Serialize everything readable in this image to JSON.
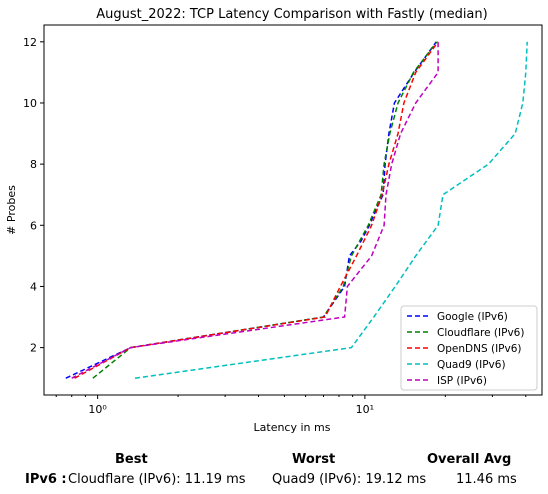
{
  "chart_data": {
    "type": "line",
    "title": "August_2022: TCP Latency Comparison with Fastly (median)",
    "xlabel": "Latency in ms",
    "ylabel": "# Probes",
    "x_scale": "log",
    "xlim": [
      0.63,
      46
    ],
    "ylim": [
      0.45,
      12.55
    ],
    "x_ticks": [
      1,
      10
    ],
    "x_tick_labels": [
      "10⁰",
      "10¹"
    ],
    "y_ticks": [
      2,
      4,
      6,
      8,
      10,
      12
    ],
    "legend_position": "lower-right",
    "grid": false,
    "series": [
      {
        "name": "Google (IPv6)",
        "color": "#0000ff",
        "points": [
          [
            0.76,
            1
          ],
          [
            1.33,
            2
          ],
          [
            7.0,
            3
          ],
          [
            8.4,
            4
          ],
          [
            8.75,
            5
          ],
          [
            9.7,
            5.5
          ],
          [
            10.4,
            6
          ],
          [
            11.0,
            6.5
          ],
          [
            11.7,
            7
          ],
          [
            11.9,
            8
          ],
          [
            12.3,
            9
          ],
          [
            12.9,
            10
          ],
          [
            15.3,
            11
          ],
          [
            18.5,
            12
          ]
        ]
      },
      {
        "name": "Cloudflare (IPv6)",
        "color": "#008000",
        "points": [
          [
            0.96,
            1
          ],
          [
            1.33,
            2
          ],
          [
            7.0,
            3
          ],
          [
            8.3,
            4
          ],
          [
            8.9,
            5
          ],
          [
            10.3,
            6
          ],
          [
            11.5,
            7
          ],
          [
            11.8,
            8
          ],
          [
            12.4,
            9
          ],
          [
            13.3,
            10
          ],
          [
            15.2,
            11
          ],
          [
            18.6,
            12
          ]
        ]
      },
      {
        "name": "OpenDNS (IPv6)",
        "color": "#ff0000",
        "points": [
          [
            0.82,
            1
          ],
          [
            1.33,
            2
          ],
          [
            7.1,
            3
          ],
          [
            8.1,
            4
          ],
          [
            9.3,
            5
          ],
          [
            10.6,
            6
          ],
          [
            11.6,
            7
          ],
          [
            12.3,
            8
          ],
          [
            13.3,
            9
          ],
          [
            14.0,
            10
          ],
          [
            15.5,
            11
          ],
          [
            18.8,
            12
          ]
        ]
      },
      {
        "name": "Quad9 (IPv6)",
        "color": "#00bfbf",
        "points": [
          [
            1.38,
            1
          ],
          [
            8.9,
            2
          ],
          [
            10.8,
            3
          ],
          [
            13.0,
            4
          ],
          [
            15.5,
            5
          ],
          [
            18.8,
            6
          ],
          [
            19.6,
            7
          ],
          [
            29.0,
            8
          ],
          [
            36.5,
            9
          ],
          [
            39.0,
            10
          ],
          [
            40.0,
            11
          ],
          [
            40.5,
            12
          ]
        ]
      },
      {
        "name": "ISP (IPv6)",
        "color": "#bf00bf",
        "points": [
          [
            0.8,
            1
          ],
          [
            1.33,
            2
          ],
          [
            8.4,
            3
          ],
          [
            8.6,
            4
          ],
          [
            10.6,
            5
          ],
          [
            11.8,
            6
          ],
          [
            12.0,
            7
          ],
          [
            12.6,
            8
          ],
          [
            13.6,
            9
          ],
          [
            15.5,
            10
          ],
          [
            18.8,
            11
          ],
          [
            18.8,
            12
          ]
        ]
      }
    ]
  },
  "summary": {
    "best_heading": "Best",
    "worst_heading": "Worst",
    "avg_heading": "Overall Avg",
    "row_label": "IPv6 :",
    "best_value": "Cloudflare (IPv6): 11.19 ms",
    "worst_value": "Quad9 (IPv6): 19.12 ms",
    "avg_value": "11.46 ms"
  }
}
